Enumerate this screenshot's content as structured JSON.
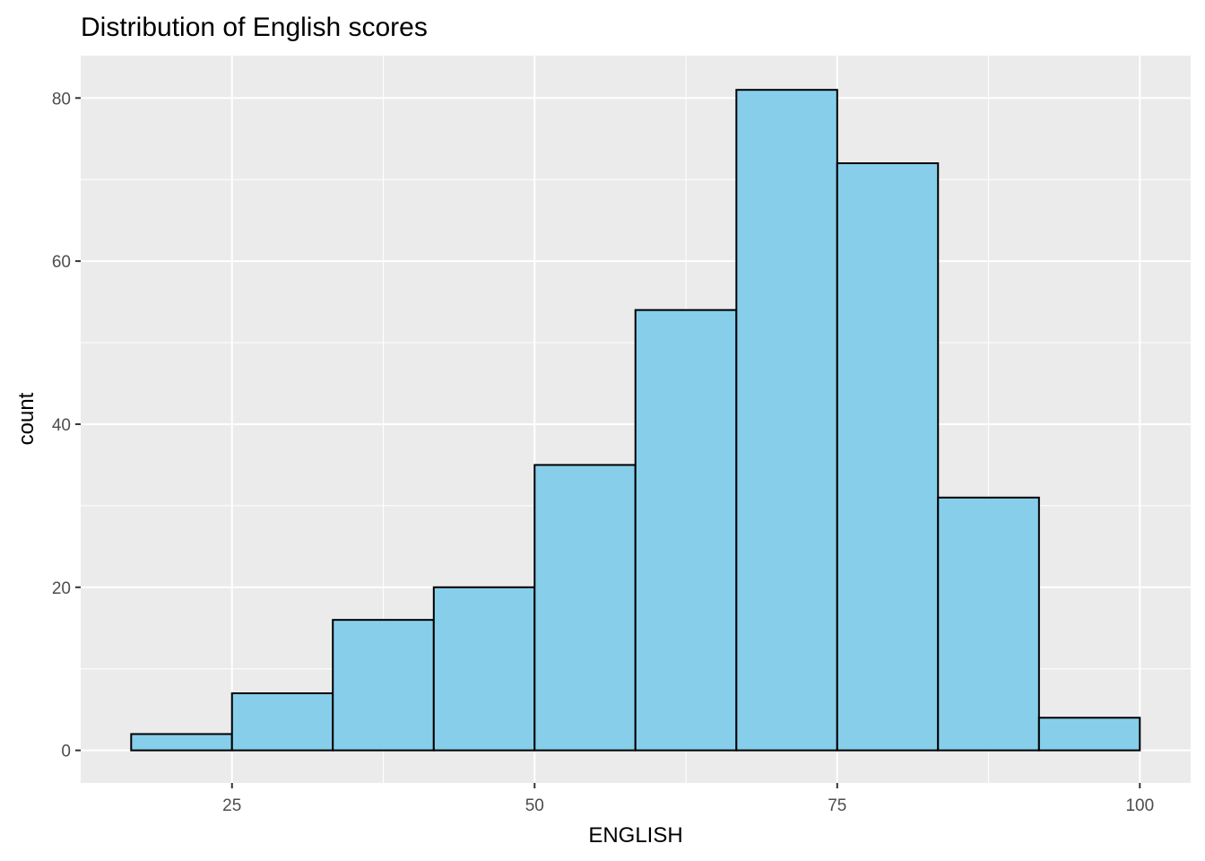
{
  "chart_data": {
    "type": "bar",
    "subtype": "histogram",
    "title": "Distribution of English scores",
    "xlabel": "ENGLISH",
    "ylabel": "count",
    "bin_edges": [
      16.67,
      25,
      33.33,
      41.67,
      50,
      58.33,
      66.67,
      75,
      83.33,
      91.67,
      100
    ],
    "values": [
      2,
      7,
      16,
      20,
      35,
      54,
      81,
      72,
      31,
      4
    ],
    "xlim": [
      12.5,
      104.2
    ],
    "ylim": [
      -4,
      85.2
    ],
    "xticks": [
      25,
      50,
      75,
      100
    ],
    "yticks": [
      0,
      20,
      40,
      60,
      80
    ],
    "xtick_labels": [
      "25",
      "50",
      "75",
      "100"
    ],
    "ytick_labels": [
      "0",
      "20",
      "40",
      "60",
      "80"
    ],
    "grid": true,
    "colors": {
      "fill": "#87CEEB",
      "outline": "#000000",
      "panel": "#EBEBEB",
      "grid": "#FFFFFF"
    }
  }
}
